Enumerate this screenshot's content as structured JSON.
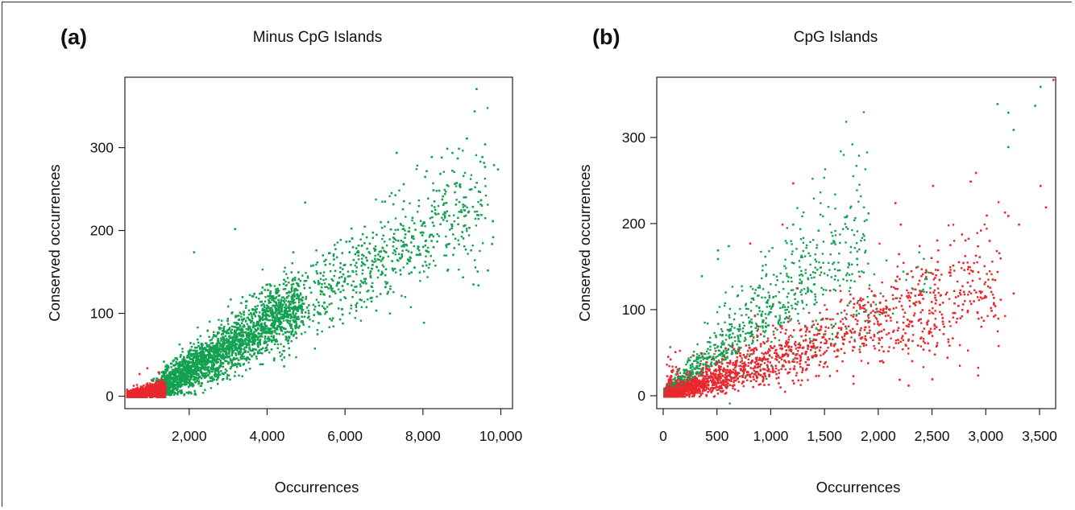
{
  "colors": {
    "green": "#12a150",
    "red": "#e8282d",
    "axis": "#222222"
  },
  "chart_data": [
    {
      "type": "scatter",
      "panel_label": "(a)",
      "title": "Minus CpG Islands",
      "xlabel": "Occurrences",
      "ylabel": "Conserved occurrences",
      "xlim": [
        350,
        10300
      ],
      "ylim": [
        -15,
        385
      ],
      "xticks": [
        2000,
        4000,
        6000,
        8000,
        10000
      ],
      "xtick_labels": [
        "2,000",
        "4,000",
        "6,000",
        "8,000",
        "10,000"
      ],
      "yticks": [
        0,
        100,
        200,
        300
      ],
      "ytick_labels": [
        "0",
        "100",
        "200",
        "300"
      ],
      "grid": false,
      "series": [
        {
          "color": "green",
          "note": "dense cloud; trend approx conserved = 0.028 * occurrences - 20, spread increasing with occurrences",
          "points": [
            [
              9350,
              372
            ],
            [
              9300,
              345
            ],
            [
              9800,
              280
            ],
            [
              9900,
              275
            ],
            [
              8600,
              300
            ],
            [
              8900,
              300
            ],
            [
              9500,
              290
            ],
            [
              8200,
              290
            ],
            [
              7300,
              295
            ],
            [
              3150,
              203
            ],
            [
              4950,
              235
            ],
            [
              2100,
              175
            ],
            [
              8000,
              90
            ],
            [
              9400,
              135
            ],
            [
              9750,
              185
            ],
            [
              7600,
              200
            ]
          ]
        },
        {
          "color": "red",
          "note": "dense cluster at low occurrences (approx 350-1300), conserved approx 0-35",
          "points": [
            [
              900,
              35
            ],
            [
              1200,
              30
            ],
            [
              700,
              28
            ]
          ]
        }
      ]
    },
    {
      "type": "scatter",
      "panel_label": "(b)",
      "title": "CpG Islands",
      "xlabel": "Occurrences",
      "ylabel": "Conserved occurrences",
      "xlim": [
        -60,
        3650
      ],
      "ylim": [
        -15,
        370
      ],
      "xticks": [
        0,
        500,
        1000,
        1500,
        2000,
        2500,
        3000,
        3500
      ],
      "xtick_labels": [
        "0",
        "500",
        "1,000",
        "1,500",
        "2,000",
        "2,500",
        "3,000",
        "3,500"
      ],
      "yticks": [
        0,
        100,
        200,
        300
      ],
      "ytick_labels": [
        "0",
        "100",
        "200",
        "300"
      ],
      "grid": false,
      "series": [
        {
          "color": "green",
          "note": "steeper spread above red cloud, mostly below 2,000 occurrences",
          "points": [
            [
              3100,
              340
            ],
            [
              3500,
              360
            ],
            [
              3450,
              338
            ],
            [
              3200,
              330
            ],
            [
              3250,
              310
            ],
            [
              3200,
              290
            ],
            [
              1900,
              213
            ],
            [
              1700,
              210
            ],
            [
              1200,
              200
            ],
            [
              500,
              170
            ],
            [
              600,
              175
            ],
            [
              350,
              140
            ],
            [
              500,
              160
            ]
          ]
        },
        {
          "color": "red",
          "note": "dense cloud along conserved approx 0.045 * occurrences, extending to 3,600",
          "points": [
            [
              3620,
              368
            ],
            [
              3550,
              220
            ],
            [
              3500,
              245
            ],
            [
              3200,
              210
            ],
            [
              3250,
              120
            ],
            [
              3300,
              200
            ],
            [
              2900,
              260
            ],
            [
              2850,
              250
            ],
            [
              2500,
              245
            ],
            [
              2150,
              225
            ],
            [
              2200,
              200
            ],
            [
              1200,
              248
            ],
            [
              1100,
              200
            ],
            [
              800,
              178
            ],
            [
              3100,
              145
            ]
          ]
        }
      ]
    }
  ]
}
